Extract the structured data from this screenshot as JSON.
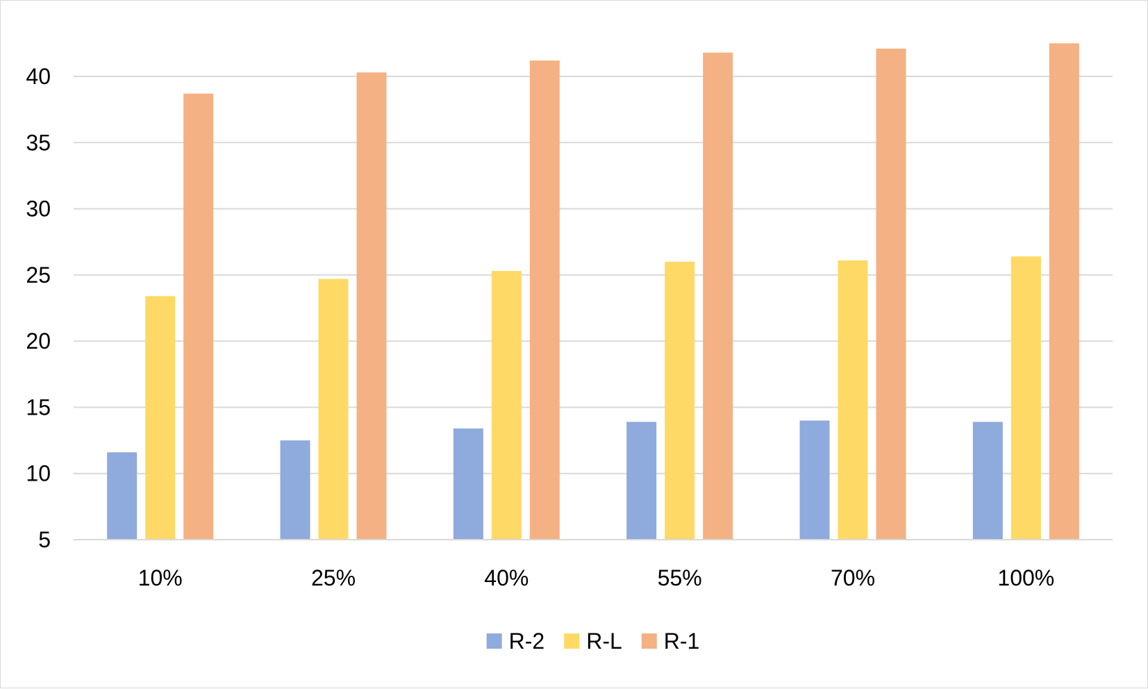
{
  "chart_data": {
    "type": "bar",
    "title": "",
    "xlabel": "",
    "ylabel": "",
    "categories": [
      "10%",
      "25%",
      "40%",
      "55%",
      "70%",
      "100%"
    ],
    "ylim": [
      5,
      43
    ],
    "yticks": [
      5,
      10,
      15,
      20,
      25,
      30,
      35,
      40
    ],
    "grid": true,
    "legend_position": "bottom",
    "series": [
      {
        "name": "R-2",
        "color": "#8faadc",
        "values": [
          11.6,
          12.5,
          13.4,
          13.9,
          14.0,
          13.9
        ]
      },
      {
        "name": "R-L",
        "color": "#ffd966",
        "values": [
          23.4,
          24.7,
          25.3,
          26.0,
          26.1,
          26.4
        ]
      },
      {
        "name": "R-1",
        "color": "#f4b183",
        "values": [
          38.7,
          40.3,
          41.2,
          41.8,
          42.1,
          42.5
        ]
      }
    ]
  }
}
